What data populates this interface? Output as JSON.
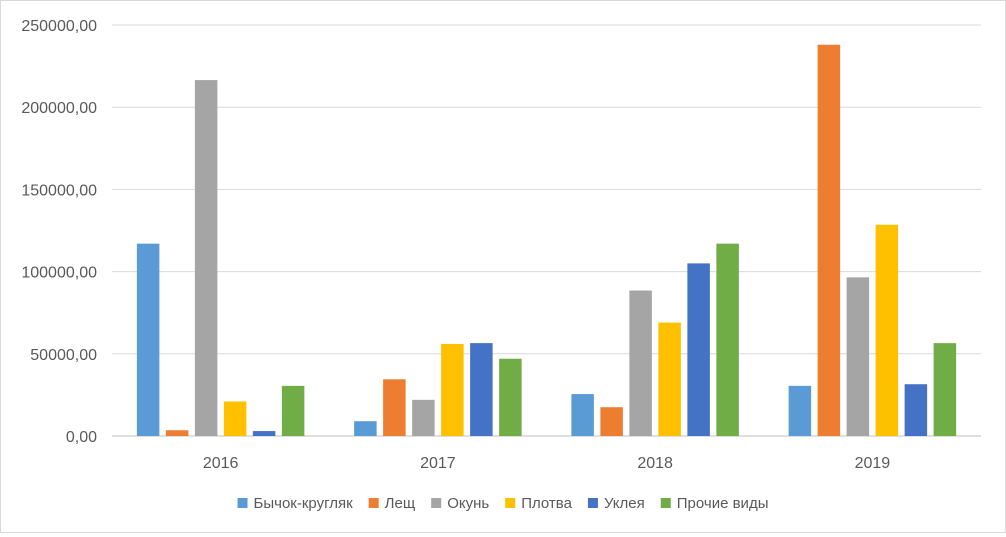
{
  "chart_data": {
    "type": "bar",
    "categories": [
      "2016",
      "2017",
      "2018",
      "2019"
    ],
    "series": [
      {
        "name": "Бычок-кругляк",
        "color": "#5b9bd5",
        "values": [
          117000,
          9000,
          25500,
          30500
        ]
      },
      {
        "name": "Лещ",
        "color": "#ed7d31",
        "values": [
          3500,
          34500,
          17500,
          238000
        ]
      },
      {
        "name": "Окунь",
        "color": "#a5a5a5",
        "values": [
          216500,
          22000,
          88500,
          96500
        ]
      },
      {
        "name": "Плотва",
        "color": "#ffc000",
        "values": [
          21000,
          56000,
          69000,
          128500
        ]
      },
      {
        "name": "Уклея",
        "color": "#4472c4",
        "values": [
          3000,
          56500,
          105000,
          31500
        ]
      },
      {
        "name": "Прочие виды",
        "color": "#70ad47",
        "values": [
          30500,
          47000,
          117000,
          56500
        ]
      }
    ],
    "y_ticks": [
      "0,00",
      "50000,00",
      "100000,00",
      "150000,00",
      "200000,00",
      "250000,00"
    ],
    "ylim": [
      0,
      250000
    ],
    "grid": true,
    "legend_position": "bottom",
    "title": "",
    "xlabel": "",
    "ylabel": ""
  }
}
